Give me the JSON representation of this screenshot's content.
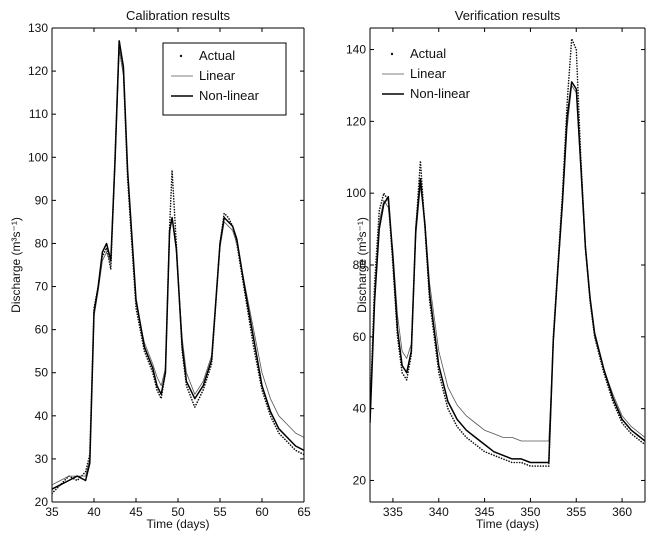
{
  "chart_data": [
    {
      "type": "line",
      "title": "Calibration results",
      "xlabel": "Time (days)",
      "ylabel": "Discharge (m³s⁻¹)",
      "xlim": [
        35,
        65
      ],
      "ylim": [
        20,
        130
      ],
      "xticks": [
        35,
        40,
        45,
        50,
        55,
        60,
        65
      ],
      "yticks": [
        20,
        30,
        40,
        50,
        60,
        70,
        80,
        90,
        100,
        110,
        120,
        130
      ],
      "legend": {
        "placement": "top-right",
        "entries": [
          "Actual",
          "Linear",
          "Non-linear"
        ]
      },
      "series": [
        {
          "name": "Actual",
          "style": "dotted",
          "x": [
            35,
            36,
            37,
            38,
            39,
            39.5,
            40,
            40.5,
            41,
            41.5,
            42,
            42.5,
            43,
            43.5,
            44,
            45,
            46,
            47,
            47.5,
            48,
            48.5,
            49,
            49.3,
            49.8,
            50.5,
            51,
            52,
            53,
            54,
            55,
            55.5,
            56,
            56.5,
            57,
            58,
            59,
            60,
            61,
            62,
            63,
            64,
            65
          ],
          "y": [
            22,
            24,
            26,
            25,
            27,
            31,
            65,
            70,
            77,
            79,
            74,
            100,
            127,
            120,
            95,
            65,
            55,
            50,
            46,
            44,
            50,
            84,
            97,
            80,
            55,
            47,
            42,
            46,
            52,
            80,
            87,
            86,
            84,
            80,
            68,
            56,
            46,
            40,
            36,
            34,
            32,
            31
          ]
        },
        {
          "name": "Linear",
          "style": "thin",
          "x": [
            35,
            36,
            37,
            38,
            39,
            39.5,
            40,
            40.5,
            41,
            41.5,
            42,
            42.5,
            43,
            43.5,
            44,
            45,
            46,
            47,
            47.5,
            48,
            48.5,
            49,
            49.3,
            49.8,
            50.5,
            51,
            52,
            53,
            54,
            55,
            55.5,
            56,
            56.5,
            57,
            58,
            59,
            60,
            61,
            62,
            63,
            64,
            65
          ],
          "y": [
            24,
            25,
            26,
            26,
            26,
            30,
            63,
            69,
            76,
            78,
            75,
            98,
            125,
            119,
            96,
            66,
            57,
            52,
            49,
            47,
            51,
            82,
            86,
            78,
            58,
            50,
            45,
            48,
            54,
            79,
            85,
            84,
            83,
            80,
            70,
            60,
            50,
            44,
            40,
            38,
            36,
            35
          ]
        },
        {
          "name": "Non-linear",
          "style": "thick",
          "x": [
            35,
            36,
            37,
            38,
            39,
            39.5,
            40,
            40.5,
            41,
            41.5,
            42,
            42.5,
            43,
            43.5,
            44,
            45,
            46,
            47,
            47.5,
            48,
            48.5,
            49,
            49.3,
            49.8,
            50.5,
            51,
            52,
            53,
            54,
            55,
            55.5,
            56,
            56.5,
            57,
            58,
            59,
            60,
            61,
            62,
            63,
            64,
            65
          ],
          "y": [
            23,
            24,
            25,
            26,
            25,
            29,
            64,
            70,
            78,
            80,
            76,
            99,
            127,
            121,
            97,
            67,
            56,
            51,
            47,
            45,
            50,
            83,
            86,
            79,
            56,
            48,
            44,
            47,
            53,
            80,
            86,
            85,
            84,
            81,
            69,
            58,
            47,
            41,
            37,
            35,
            33,
            32
          ]
        }
      ]
    },
    {
      "type": "line",
      "title": "Verification results",
      "xlabel": "Time (days)",
      "ylabel": "Discharge (m³s⁻¹)",
      "xlim": [
        332.5,
        362.5
      ],
      "ylim": [
        14,
        146
      ],
      "xticks": [
        335,
        340,
        345,
        350,
        355,
        360
      ],
      "yticks": [
        20,
        40,
        60,
        80,
        100,
        120,
        140
      ],
      "legend": {
        "placement": "top-left",
        "entries": [
          "Actual",
          "Linear",
          "Non-linear"
        ]
      },
      "series": [
        {
          "name": "Actual",
          "style": "dotted",
          "x": [
            332.5,
            333,
            333.5,
            334,
            334.5,
            335,
            335.5,
            336,
            336.5,
            337,
            337.5,
            338,
            338.5,
            339,
            340,
            341,
            342,
            343,
            344,
            345,
            346,
            347,
            348,
            349,
            350,
            351,
            352,
            352.5,
            353,
            353.5,
            354,
            354.5,
            355,
            355.5,
            356,
            356.5,
            357,
            358,
            359,
            360,
            361,
            362,
            362.5
          ],
          "y": [
            38,
            75,
            95,
            100,
            98,
            80,
            60,
            50,
            48,
            55,
            90,
            109,
            90,
            70,
            50,
            40,
            35,
            32,
            30,
            28,
            27,
            26,
            25,
            25,
            24,
            24,
            24,
            60,
            80,
            100,
            125,
            143,
            140,
            110,
            85,
            70,
            60,
            50,
            42,
            36,
            33,
            31,
            30
          ]
        },
        {
          "name": "Linear",
          "style": "thin",
          "x": [
            332.5,
            333,
            333.5,
            334,
            334.5,
            335,
            335.5,
            336,
            336.5,
            337,
            337.5,
            338,
            338.5,
            339,
            340,
            341,
            342,
            343,
            344,
            345,
            346,
            347,
            348,
            349,
            350,
            351,
            352,
            352.5,
            353,
            353.5,
            354,
            354.5,
            355,
            355.5,
            356,
            356.5,
            357,
            358,
            359,
            360,
            361,
            362,
            362.5
          ],
          "y": [
            40,
            72,
            92,
            98,
            96,
            84,
            66,
            56,
            54,
            58,
            88,
            102,
            92,
            75,
            56,
            46,
            41,
            38,
            36,
            34,
            33,
            32,
            32,
            31,
            31,
            31,
            31,
            58,
            78,
            96,
            118,
            130,
            128,
            106,
            84,
            70,
            60,
            51,
            44,
            38,
            35,
            33,
            32
          ]
        },
        {
          "name": "Non-linear",
          "style": "thick",
          "x": [
            332.5,
            333,
            333.5,
            334,
            334.5,
            335,
            335.5,
            336,
            336.5,
            337,
            337.5,
            338,
            338.5,
            339,
            340,
            341,
            342,
            343,
            344,
            345,
            346,
            347,
            348,
            349,
            350,
            351,
            352,
            352.5,
            353,
            353.5,
            354,
            354.5,
            355,
            355.5,
            356,
            356.5,
            357,
            358,
            359,
            360,
            361,
            362,
            362.5
          ],
          "y": [
            36,
            70,
            90,
            97,
            99,
            82,
            62,
            52,
            50,
            56,
            90,
            104,
            91,
            72,
            52,
            42,
            37,
            34,
            32,
            30,
            28,
            27,
            26,
            26,
            25,
            25,
            25,
            59,
            79,
            98,
            121,
            131,
            129,
            108,
            85,
            71,
            61,
            51,
            43,
            37,
            34,
            32,
            31
          ]
        }
      ]
    }
  ]
}
